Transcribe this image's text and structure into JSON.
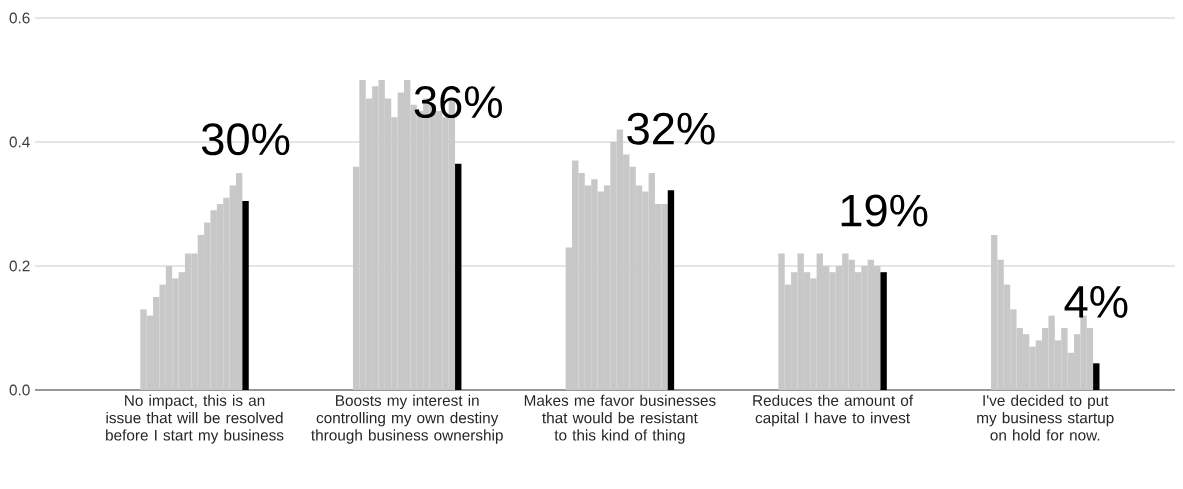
{
  "chart_data": {
    "type": "bar",
    "categories": [
      "No impact, this is an issue that will be resolved before I start my business",
      "Boosts my interest in controlling my own destiny through business ownership",
      "Makes me favor businesses that would be resistant to this kind of thing",
      "Reduces the amount of capital I have to invest",
      "I've decided to put my business startup on hold for now."
    ],
    "series": [
      {
        "color": "#c8c8c8",
        "values": [
          0.13,
          0.36,
          0.23,
          0.22,
          0.25
        ]
      },
      {
        "color": "#c8c8c8",
        "values": [
          0.12,
          0.5,
          0.37,
          0.17,
          0.21
        ]
      },
      {
        "color": "#c8c8c8",
        "values": [
          0.15,
          0.47,
          0.35,
          0.19,
          0.17
        ]
      },
      {
        "color": "#c8c8c8",
        "values": [
          0.17,
          0.49,
          0.33,
          0.22,
          0.13
        ]
      },
      {
        "color": "#c8c8c8",
        "values": [
          0.2,
          0.5,
          0.34,
          0.19,
          0.1
        ]
      },
      {
        "color": "#c8c8c8",
        "values": [
          0.18,
          0.47,
          0.32,
          0.18,
          0.09
        ]
      },
      {
        "color": "#c8c8c8",
        "values": [
          0.19,
          0.44,
          0.33,
          0.22,
          0.07
        ]
      },
      {
        "color": "#c8c8c8",
        "values": [
          0.22,
          0.48,
          0.4,
          0.2,
          0.08
        ]
      },
      {
        "color": "#c8c8c8",
        "values": [
          0.22,
          0.5,
          0.42,
          0.19,
          0.1
        ]
      },
      {
        "color": "#c8c8c8",
        "values": [
          0.25,
          0.46,
          0.38,
          0.2,
          0.12
        ]
      },
      {
        "color": "#c8c8c8",
        "values": [
          0.27,
          0.45,
          0.36,
          0.22,
          0.08
        ]
      },
      {
        "color": "#c8c8c8",
        "values": [
          0.29,
          0.47,
          0.33,
          0.21,
          0.1
        ]
      },
      {
        "color": "#c8c8c8",
        "values": [
          0.3,
          0.46,
          0.32,
          0.19,
          0.06
        ]
      },
      {
        "color": "#c8c8c8",
        "values": [
          0.31,
          0.45,
          0.35,
          0.2,
          0.09
        ]
      },
      {
        "color": "#c8c8c8",
        "values": [
          0.33,
          0.44,
          0.3,
          0.21,
          0.12
        ]
      },
      {
        "color": "#c8c8c8",
        "values": [
          0.35,
          0.47,
          0.3,
          0.2,
          0.1
        ]
      },
      {
        "color": "#000000",
        "values": [
          0.305,
          0.365,
          0.322,
          0.19,
          0.043
        ],
        "value_labels": [
          "30%",
          "36%",
          "32%",
          "19%",
          "4%"
        ]
      }
    ],
    "ylim": [
      0,
      0.6
    ],
    "yticks": [
      {
        "value": 0,
        "label": "0.0"
      },
      {
        "value": 0.2,
        "label": "0.2"
      },
      {
        "value": 0.4,
        "label": "0.4"
      },
      {
        "value": 0.6,
        "label": "0.6"
      }
    ],
    "grid": "y"
  }
}
